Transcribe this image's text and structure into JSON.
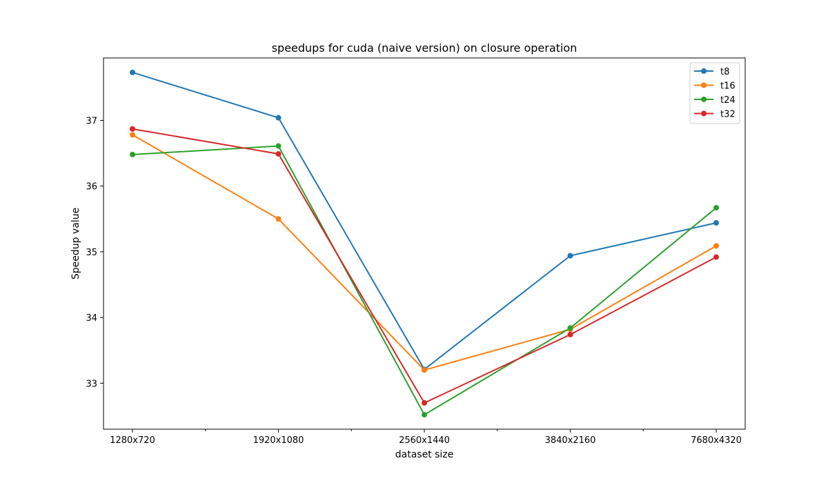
{
  "chart_data": {
    "type": "line",
    "title": "speedups for cuda (naive version) on closure operation",
    "xlabel": "dataset size",
    "ylabel": "Speedup value",
    "categories": [
      "1280x720",
      "1920x1080",
      "2560x1440",
      "3840x2160",
      "7680x4320"
    ],
    "ylim": [
      32.3,
      37.95
    ],
    "yticks": [
      33,
      34,
      35,
      36,
      37
    ],
    "grid": false,
    "legend_position": "top-right",
    "series": [
      {
        "name": "t8",
        "color": "#1f77b4",
        "values": [
          37.73,
          37.04,
          33.21,
          34.94,
          35.44
        ]
      },
      {
        "name": "t16",
        "color": "#ff7f0e",
        "values": [
          36.78,
          35.5,
          33.2,
          33.82,
          35.09
        ]
      },
      {
        "name": "t24",
        "color": "#2ca02c",
        "values": [
          36.48,
          36.61,
          32.52,
          33.84,
          35.67
        ]
      },
      {
        "name": "t32",
        "color": "#d62728",
        "values": [
          36.87,
          36.49,
          32.7,
          33.74,
          34.92
        ]
      }
    ]
  }
}
